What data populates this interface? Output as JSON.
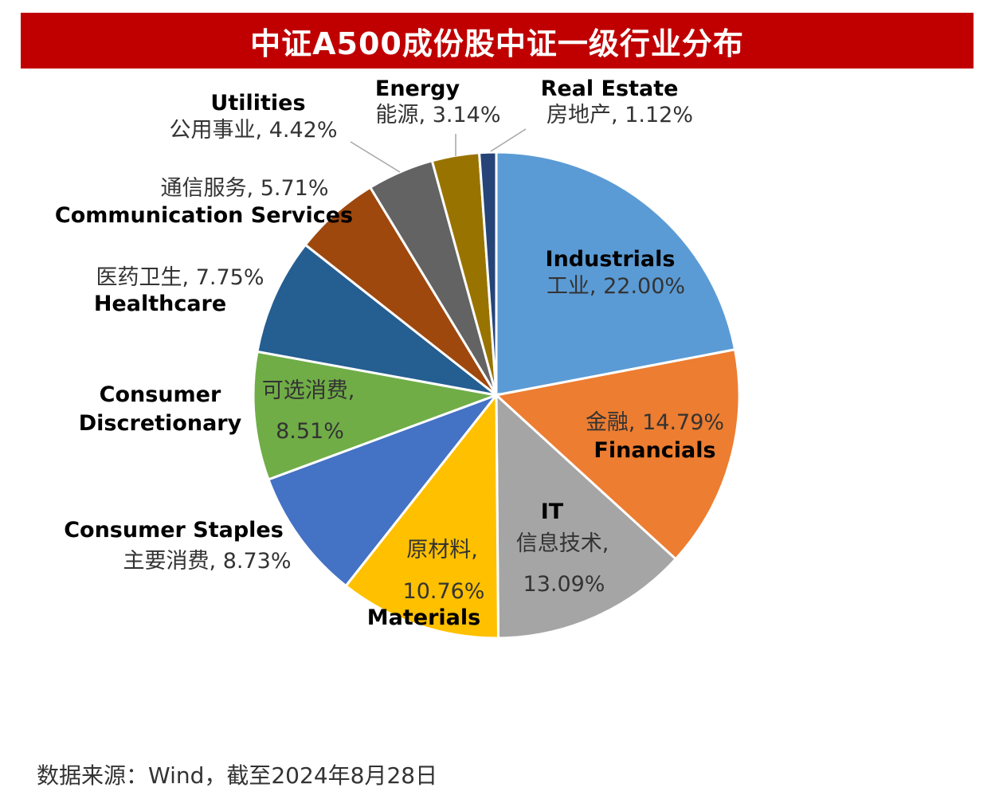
{
  "chart_data": {
    "type": "pie",
    "title": "中证A500成份股中证一级行业分布",
    "source": "数据来源：Wind，截至2024年8月28日",
    "slices": [
      {
        "en": "Industrials",
        "cn": "工业",
        "value": 22.0,
        "pct": "22.00%",
        "color": "#5b9bd5"
      },
      {
        "en": "Financials",
        "cn": "金融",
        "value": 14.79,
        "pct": "14.79%",
        "color": "#ed7d31"
      },
      {
        "en": "IT",
        "cn": "信息技术",
        "value": 13.09,
        "pct": "13.09%",
        "color": "#a5a5a5"
      },
      {
        "en": "Materials",
        "cn": "原材料",
        "value": 10.76,
        "pct": "10.76%",
        "color": "#ffc000"
      },
      {
        "en": "Consumer Staples",
        "cn": "主要消费",
        "value": 8.73,
        "pct": "8.73%",
        "color": "#4472c4"
      },
      {
        "en": "Consumer Discretionary",
        "cn": "可选消费",
        "value": 8.51,
        "pct": "8.51%",
        "color": "#70ad47"
      },
      {
        "en": "Healthcare",
        "cn": "医药卫生",
        "value": 7.75,
        "pct": "7.75%",
        "color": "#255e91"
      },
      {
        "en": "Communication Services",
        "cn": "通信服务",
        "value": 5.71,
        "pct": "5.71%",
        "color": "#9e480e"
      },
      {
        "en": "Utilities",
        "cn": "公用事业",
        "value": 4.42,
        "pct": "4.42%",
        "color": "#636363"
      },
      {
        "en": "Energy",
        "cn": "能源",
        "value": 3.14,
        "pct": "3.14%",
        "color": "#997300"
      },
      {
        "en": "Real Estate",
        "cn": "房地产",
        "value": 1.12,
        "pct": "1.12%",
        "color": "#264478"
      }
    ]
  }
}
